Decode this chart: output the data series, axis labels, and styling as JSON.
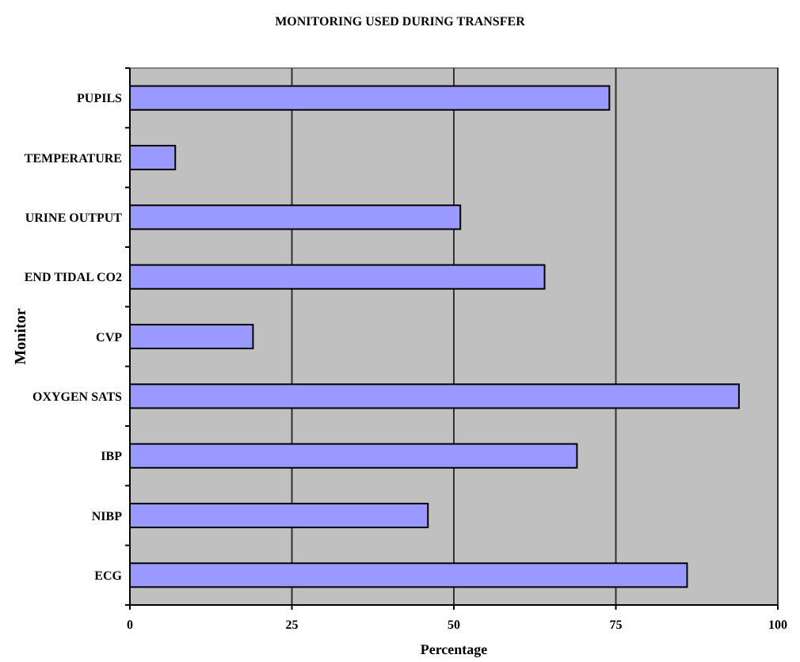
{
  "chart_data": {
    "type": "bar",
    "orientation": "horizontal",
    "title": "MONITORING USED DURING TRANSFER",
    "xlabel": "Percentage",
    "ylabel": "Monitor",
    "categories": [
      "PUPILS",
      "TEMPERATURE",
      "URINE OUTPUT",
      "END TIDAL CO2",
      "CVP",
      "OXYGEN SATS",
      "IBP",
      "NIBP",
      "ECG"
    ],
    "values": [
      74,
      7,
      51,
      64,
      19,
      94,
      69,
      46,
      86
    ],
    "color": "#9999ff",
    "xlim": [
      0,
      100
    ],
    "xticks": [
      0,
      25,
      50,
      75,
      100
    ],
    "grid": "x"
  }
}
